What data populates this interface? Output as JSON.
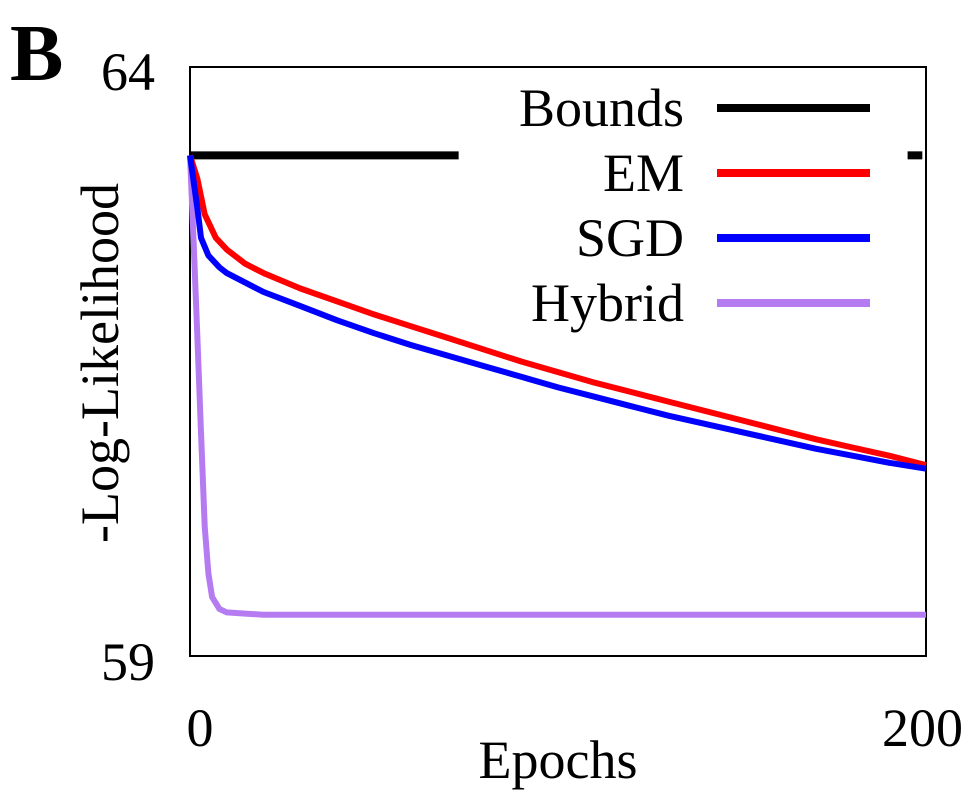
{
  "panel_label": "B",
  "chart_data": {
    "type": "line",
    "title": "",
    "xlabel": "Epochs",
    "ylabel": "-Log-Likelihood",
    "xlim": [
      0,
      200
    ],
    "ylim": [
      59,
      64
    ],
    "xticks": [
      "0",
      "200"
    ],
    "yticks": [
      "59",
      "64"
    ],
    "legend_position": "top-right",
    "series": [
      {
        "name": "Bounds",
        "color": "#000000",
        "style": "horizontal segments",
        "segments": [
          {
            "x": [
              0,
              73
            ],
            "y": [
              63.25,
              63.25
            ]
          },
          {
            "x": [
              195,
              199
            ],
            "y": [
              63.25,
              63.25
            ]
          }
        ]
      },
      {
        "name": "EM",
        "color": "#ff0000",
        "x": [
          0,
          2,
          4,
          7,
          10,
          15,
          20,
          30,
          40,
          50,
          60,
          70,
          80,
          90,
          100,
          110,
          120,
          130,
          140,
          150,
          160,
          170,
          180,
          190,
          200
        ],
        "y": [
          63.25,
          63.05,
          62.75,
          62.55,
          62.45,
          62.33,
          62.25,
          62.12,
          62.01,
          61.9,
          61.8,
          61.7,
          61.6,
          61.5,
          61.41,
          61.32,
          61.24,
          61.16,
          61.08,
          61.0,
          60.92,
          60.84,
          60.77,
          60.7,
          60.62
        ]
      },
      {
        "name": "SGD",
        "color": "#0000ff",
        "x": [
          0,
          2,
          3,
          5,
          8,
          10,
          15,
          20,
          30,
          40,
          50,
          60,
          70,
          80,
          90,
          100,
          110,
          120,
          130,
          140,
          150,
          160,
          170,
          180,
          190,
          200
        ],
        "y": [
          63.25,
          62.8,
          62.55,
          62.4,
          62.3,
          62.25,
          62.17,
          62.09,
          61.97,
          61.85,
          61.74,
          61.64,
          61.55,
          61.46,
          61.37,
          61.28,
          61.2,
          61.12,
          61.04,
          60.97,
          60.9,
          60.83,
          60.76,
          60.7,
          60.64,
          60.59
        ]
      },
      {
        "name": "Hybrid",
        "color": "#b57cf2",
        "x": [
          0,
          1,
          2,
          3,
          4,
          5,
          6,
          8,
          10,
          15,
          20,
          30,
          50,
          100,
          150,
          200
        ],
        "y": [
          63.25,
          62.5,
          61.7,
          60.9,
          60.1,
          59.7,
          59.5,
          59.4,
          59.37,
          59.36,
          59.35,
          59.35,
          59.35,
          59.35,
          59.35,
          59.35
        ]
      }
    ]
  }
}
